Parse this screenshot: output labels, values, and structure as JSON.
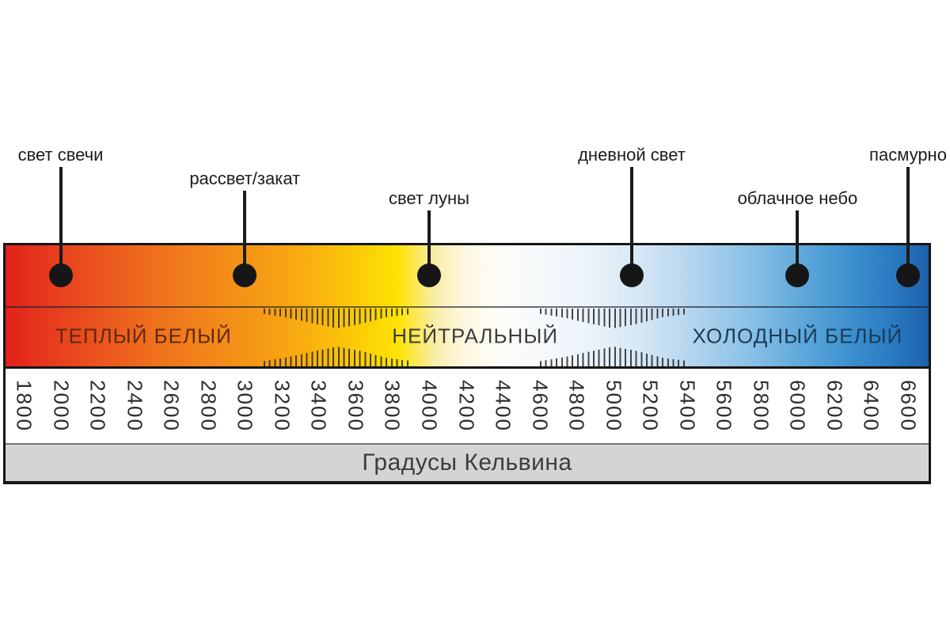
{
  "chart_data": {
    "type": "scale",
    "title": "",
    "axis": {
      "label": "Градусы Кельвина",
      "min": 1800,
      "max": 6600,
      "step": 200,
      "tick_labels": [
        "1800",
        "2000",
        "2200",
        "2400",
        "2600",
        "2800",
        "3000",
        "3200",
        "3400",
        "3600",
        "3800",
        "4000",
        "4200",
        "4400",
        "4600",
        "4800",
        "5000",
        "5200",
        "5400",
        "5600",
        "5800",
        "6000",
        "6200",
        "6400",
        "6600"
      ]
    },
    "markers": [
      {
        "label": "свет свечи",
        "kelvin": 2000,
        "row": 0
      },
      {
        "label": "рассвет/закат",
        "kelvin": 3000,
        "row": 1
      },
      {
        "label": "свет луны",
        "kelvin": 4000,
        "row": 2
      },
      {
        "label": "дневной свет",
        "kelvin": 5100,
        "row": 0
      },
      {
        "label": "облачное небо",
        "kelvin": 6000,
        "row": 2
      },
      {
        "label": "пасмурно",
        "kelvin": 6600,
        "row": 0
      }
    ],
    "zones": [
      {
        "label": "ТЕПЛЫЙ БЕЛЫЙ",
        "from": 1800,
        "to": 3100,
        "text_color": "#5f2a0e"
      },
      {
        "label": "НЕЙТРАЛЬНЫЙ",
        "from": 3900,
        "to": 4600,
        "text_color": "#3c3c3e"
      },
      {
        "label": "ХОЛОДНЫЙ БЕЛЫЙ",
        "from": 5400,
        "to": 6600,
        "text_color": "#1c3a57"
      }
    ],
    "blend_zones": [
      {
        "from": 3100,
        "to": 3900
      },
      {
        "from": 4600,
        "to": 5400
      }
    ],
    "gradient_stops": [
      {
        "pos": 0,
        "color": "#e2201c"
      },
      {
        "pos": 3,
        "color": "#e5321d"
      },
      {
        "pos": 9,
        "color": "#ea4f1e"
      },
      {
        "pos": 16,
        "color": "#ef6f1d"
      },
      {
        "pos": 23,
        "color": "#f38a19"
      },
      {
        "pos": 30,
        "color": "#f7a213"
      },
      {
        "pos": 35,
        "color": "#fabb0c"
      },
      {
        "pos": 39,
        "color": "#fcd006"
      },
      {
        "pos": 42.5,
        "color": "#fee304"
      },
      {
        "pos": 46.5,
        "color": "#faeda8"
      },
      {
        "pos": 49.5,
        "color": "#fcf7dd"
      },
      {
        "pos": 53,
        "color": "#fefdf6"
      },
      {
        "pos": 58,
        "color": "#f6f9fc"
      },
      {
        "pos": 63,
        "color": "#ecf3fa"
      },
      {
        "pos": 69,
        "color": "#d5e6f5"
      },
      {
        "pos": 75,
        "color": "#b0d3ee"
      },
      {
        "pos": 81,
        "color": "#86bfe5"
      },
      {
        "pos": 87,
        "color": "#5aa5d9"
      },
      {
        "pos": 92,
        "color": "#3a8ecd"
      },
      {
        "pos": 96,
        "color": "#2a7ac1"
      },
      {
        "pos": 99,
        "color": "#2068b2"
      },
      {
        "pos": 100,
        "color": "#1d5fa9"
      }
    ],
    "layout_hints": {
      "legend": "none",
      "grid": "off",
      "tick_orientation": "rotated-90-clockwise"
    }
  },
  "colors": {
    "frame_border": "#151515",
    "caption_bg": "#d4d4d4",
    "caption_text": "#3d3d3d",
    "tick_text": "#2d2d2d",
    "marker_text": "#1c1c1c",
    "marker_dot": "#161616",
    "page_bg": "#ffffff"
  }
}
